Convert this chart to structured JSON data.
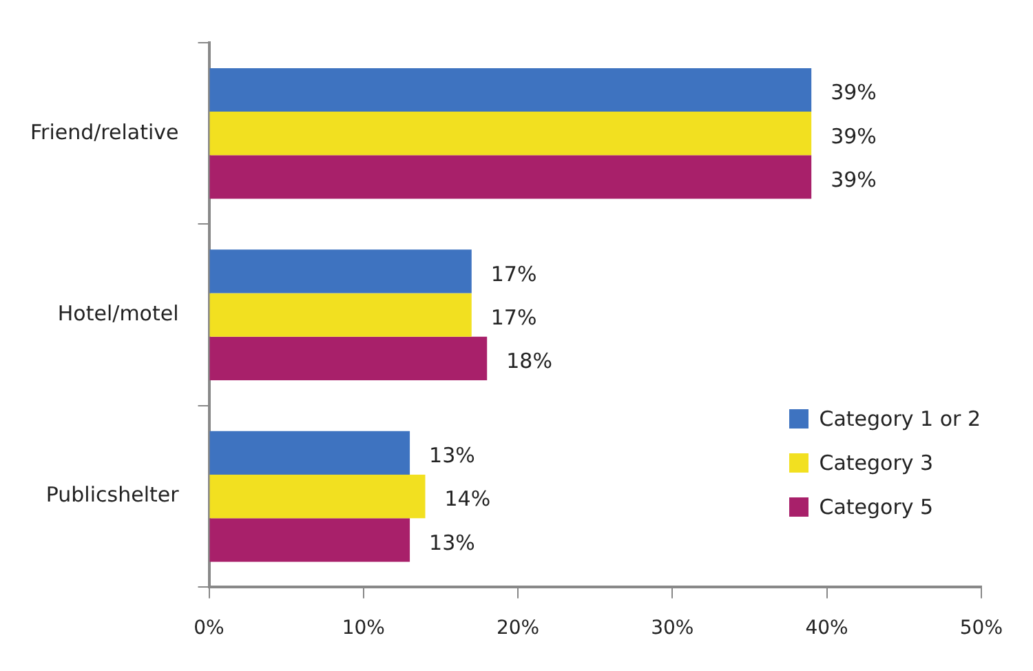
{
  "chart_data": {
    "type": "bar",
    "orientation": "horizontal",
    "categories": [
      "Friend/relative",
      "Hotel/motel",
      "Publicshelter"
    ],
    "series": [
      {
        "name": "Category 1 or 2",
        "color": "#3e73c0",
        "values": [
          39,
          17,
          13
        ],
        "value_labels": [
          "39%",
          "17%",
          "13%"
        ]
      },
      {
        "name": "Category 3",
        "color": "#f2e020",
        "values": [
          39,
          17,
          14
        ],
        "value_labels": [
          "39%",
          "17%",
          "14%"
        ]
      },
      {
        "name": "Category 5",
        "color": "#a8206a",
        "values": [
          39,
          18,
          13
        ],
        "value_labels": [
          "39%",
          "18%",
          "13%"
        ]
      }
    ],
    "xlim": [
      0,
      50
    ],
    "xticks": [
      {
        "value": 0,
        "label": "0%"
      },
      {
        "value": 10,
        "label": "10%"
      },
      {
        "value": 20,
        "label": "20%"
      },
      {
        "value": 30,
        "label": "30%"
      },
      {
        "value": 40,
        "label": "40%"
      },
      {
        "value": 50,
        "label": "50%"
      }
    ],
    "grid": false,
    "legend": "bottom right"
  }
}
